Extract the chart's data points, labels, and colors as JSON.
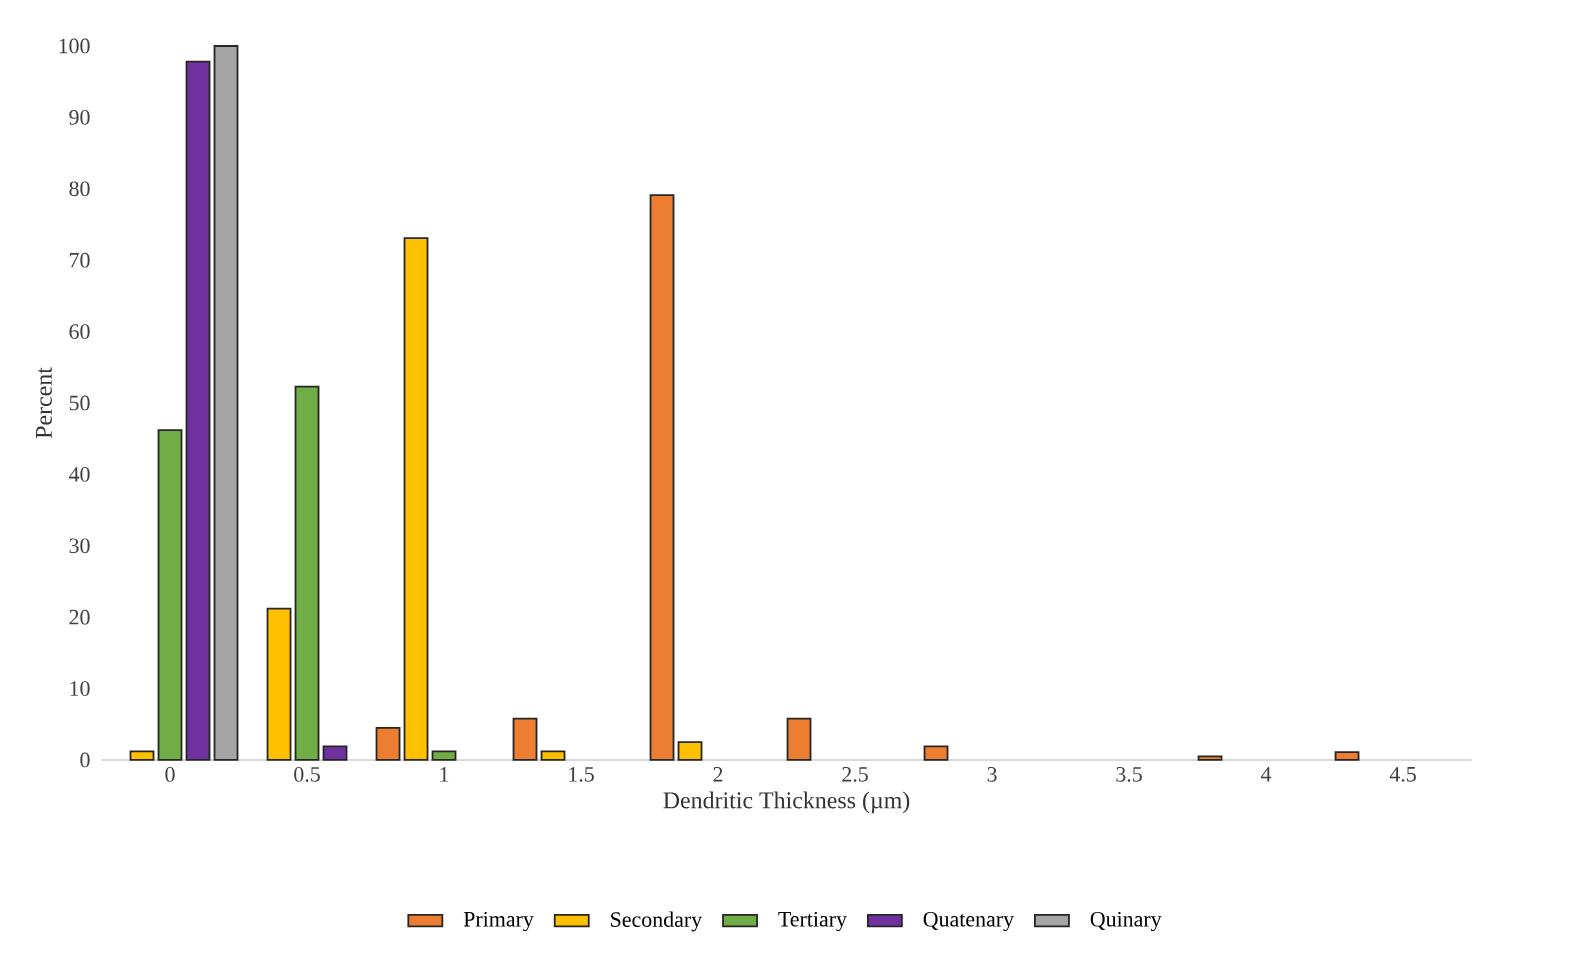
{
  "chart_data": {
    "type": "bar",
    "xlabel": "Dendritic Thickness (µm)",
    "ylabel": "Percent",
    "categories": [
      "0",
      "0.5",
      "1",
      "1.5",
      "2",
      "2.5",
      "3",
      "3.5",
      "4",
      "4.5"
    ],
    "series": [
      {
        "name": "Primary",
        "color": "#ed7d31",
        "values": [
          null,
          null,
          4.5,
          5.8,
          79.1,
          5.8,
          1.9,
          null,
          0.5,
          1.1
        ]
      },
      {
        "name": "Secondary",
        "color": "#ffc000",
        "values": [
          1.2,
          21.2,
          73.1,
          1.2,
          2.5,
          null,
          null,
          null,
          null,
          null
        ]
      },
      {
        "name": "Tertiary",
        "color": "#70ad47",
        "values": [
          46.2,
          52.3,
          1.2,
          null,
          null,
          null,
          null,
          null,
          null,
          null
        ]
      },
      {
        "name": "Quatenary",
        "color": "#7030a0",
        "values": [
          97.8,
          1.9,
          null,
          null,
          null,
          null,
          null,
          null,
          null,
          null
        ]
      },
      {
        "name": "Quinary",
        "color": "#a5a5a5",
        "values": [
          100,
          null,
          null,
          null,
          null,
          null,
          null,
          null,
          null,
          null
        ]
      }
    ],
    "ylim": [
      0,
      100
    ],
    "yticks": [
      0,
      10,
      20,
      30,
      40,
      50,
      60,
      70,
      80,
      90,
      100
    ],
    "legend": "bottom"
  }
}
